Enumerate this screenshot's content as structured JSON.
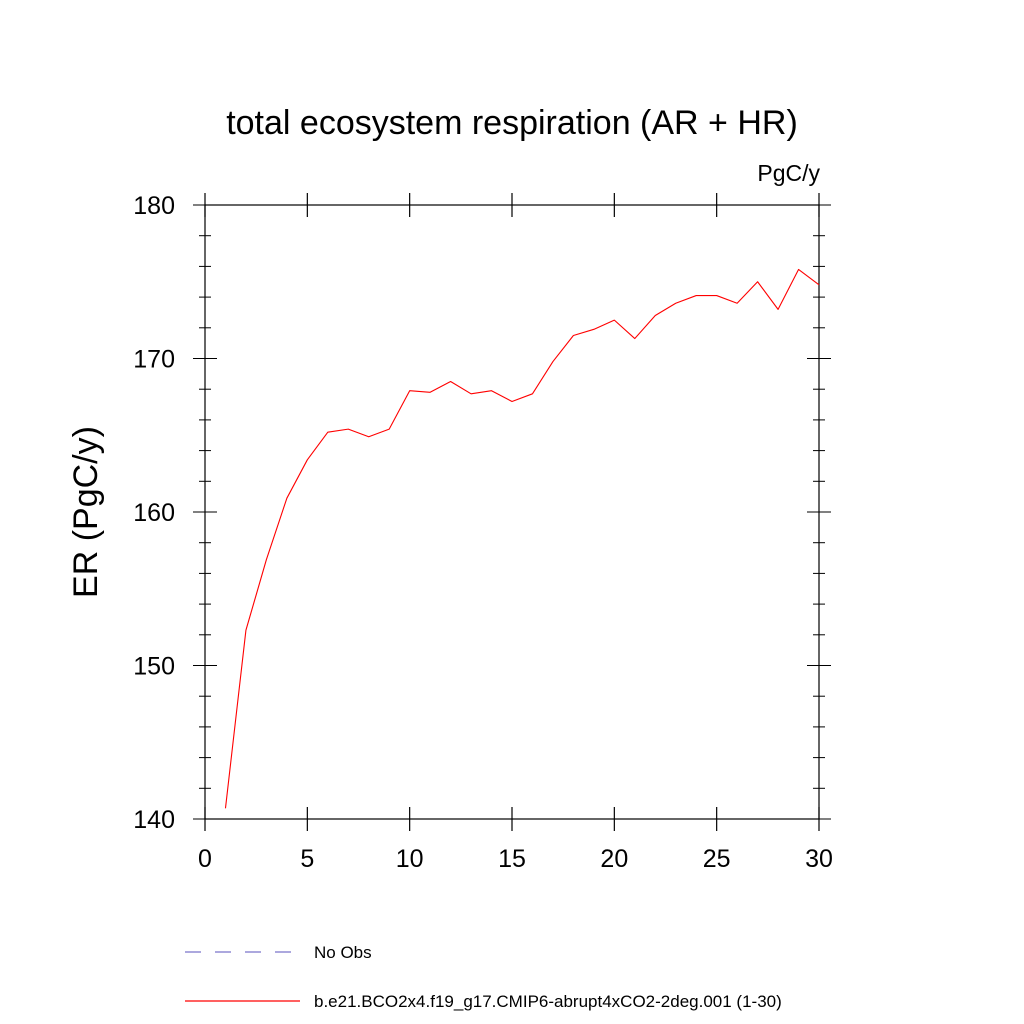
{
  "chart_data": {
    "type": "line",
    "title": "total ecosystem respiration (AR + HR)",
    "units": "PgC/y",
    "ylabel": "ER  (PgC/y)",
    "xlabel": "",
    "xlim": [
      0,
      30
    ],
    "ylim": [
      140,
      180
    ],
    "x_ticks": [
      0,
      5,
      10,
      15,
      20,
      25,
      30
    ],
    "y_ticks": [
      140,
      150,
      160,
      170,
      180
    ],
    "x_tick_labels": [
      "0",
      "5",
      "10",
      "15",
      "20",
      "25",
      "30"
    ],
    "y_tick_labels": [
      "140",
      "150",
      "160",
      "170",
      "180"
    ],
    "grid": false,
    "series": [
      {
        "name": "b.e21.BCO2x4.f19_g17.CMIP6-abrupt4xCO2-2deg.001 (1-30)",
        "color": "#ff0000",
        "style": "solid",
        "x": [
          1,
          2,
          3,
          4,
          5,
          6,
          7,
          8,
          9,
          10,
          11,
          12,
          13,
          14,
          15,
          16,
          17,
          18,
          19,
          20,
          21,
          22,
          23,
          24,
          25,
          26,
          27,
          28,
          29,
          30
        ],
        "values": [
          140.7,
          152.3,
          156.9,
          160.9,
          163.4,
          165.2,
          165.4,
          164.9,
          165.4,
          167.9,
          167.8,
          168.5,
          167.7,
          167.9,
          167.2,
          167.7,
          169.8,
          171.5,
          171.9,
          172.5,
          171.3,
          172.8,
          173.6,
          174.1,
          174.1,
          173.6,
          175.0,
          173.2,
          175.8,
          174.8
        ]
      }
    ],
    "legend": [
      {
        "label": "No Obs",
        "color": "#7b74c9",
        "style": "dashed"
      },
      {
        "label": "b.e21.BCO2x4.f19_g17.CMIP6-abrupt4xCO2-2deg.001 (1-30)",
        "color": "#ff0000",
        "style": "solid"
      }
    ],
    "legend_position": "bottom"
  }
}
